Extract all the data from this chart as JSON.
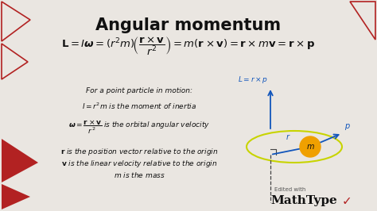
{
  "bg_color": "#eae6e1",
  "title": "Angular momentum",
  "title_fontsize": 15,
  "title_color": "#111111",
  "red_color": "#b22222",
  "blue_color": "#1155bb",
  "text_color": "#111111",
  "edited_text": "Edited with",
  "mathtype_text": "MathType"
}
